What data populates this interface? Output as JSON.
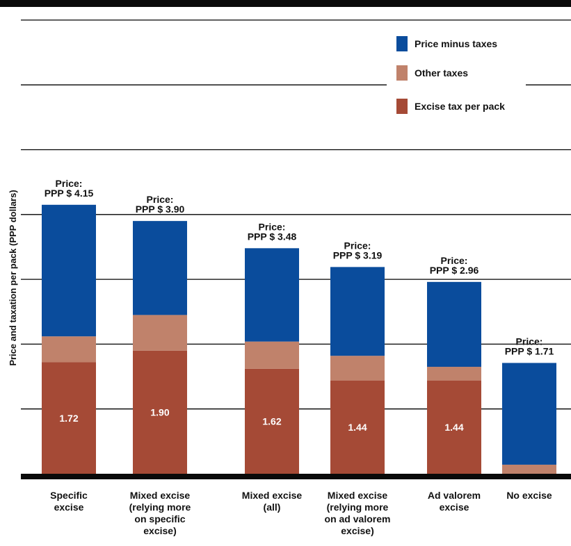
{
  "chart_data": {
    "type": "bar",
    "stacked": true,
    "ylabel": "Price and taxation per pack (PPP dollars)",
    "ylim": [
      0,
      7
    ],
    "grid": true,
    "legend_position": "top-right",
    "colors": {
      "Price minus taxes": "#0a4c9c",
      "Other taxes": "#c0826b",
      "Excise tax per pack": "#a54a36"
    },
    "categories": [
      [
        "Specific",
        "excise"
      ],
      [
        "Mixed excise",
        "(relying more",
        "on specific",
        "excise)"
      ],
      [
        "Mixed excise",
        "(all)"
      ],
      [
        "Mixed excise",
        "(relying more",
        "on ad valorem",
        "excise)"
      ],
      [
        "Ad valorem",
        "excise"
      ],
      [
        "No excise"
      ]
    ],
    "series": [
      {
        "name": "Excise tax per pack",
        "values": [
          1.72,
          1.9,
          1.62,
          1.44,
          1.44,
          0
        ]
      },
      {
        "name": "Other taxes",
        "values": [
          0.4,
          0.55,
          0.42,
          0.38,
          0.21,
          0.14
        ]
      },
      {
        "name": "Price minus taxes",
        "values": [
          2.03,
          1.45,
          1.44,
          1.37,
          1.31,
          1.57
        ]
      }
    ],
    "price_labels": [
      [
        "Price:",
        "PPP $ 4.15"
      ],
      [
        "Price:",
        "PPP $ 3.90"
      ],
      [
        "Price:",
        "PPP $ 3.48"
      ],
      [
        "Price:",
        "PPP $ 3.19"
      ],
      [
        "Price:",
        "PPP $ 2.96"
      ],
      [
        "Price:",
        "PPP $ 1.71"
      ]
    ],
    "data_labels": [
      "1.72",
      "1.90",
      "1.62",
      "1.44",
      "1.44",
      ""
    ],
    "legend": [
      "Price minus taxes",
      "Other taxes",
      "Excise tax per pack"
    ]
  }
}
